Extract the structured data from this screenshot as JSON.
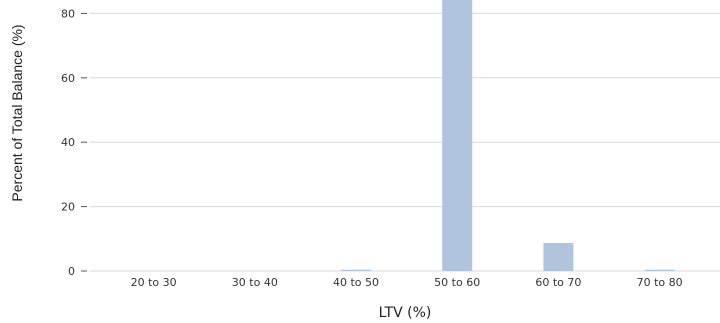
{
  "chart_data": {
    "type": "bar",
    "title": "",
    "xlabel": "LTV (%)",
    "ylabel": "Percent of Total Balance (%)",
    "categories": [
      "20 to 30",
      "30 to 40",
      "40 to 50",
      "50 to 60",
      "60 to 70",
      "70 to 80"
    ],
    "values": [
      0,
      0,
      0.4,
      90.5,
      8.7,
      0.4
    ],
    "ylim": [
      0,
      85
    ],
    "yticks": [
      0,
      20,
      40,
      60,
      80
    ],
    "grid": true,
    "legend": "none",
    "colors": {
      "bar": "#b0c4de",
      "grid": "#d9d9d9"
    }
  }
}
